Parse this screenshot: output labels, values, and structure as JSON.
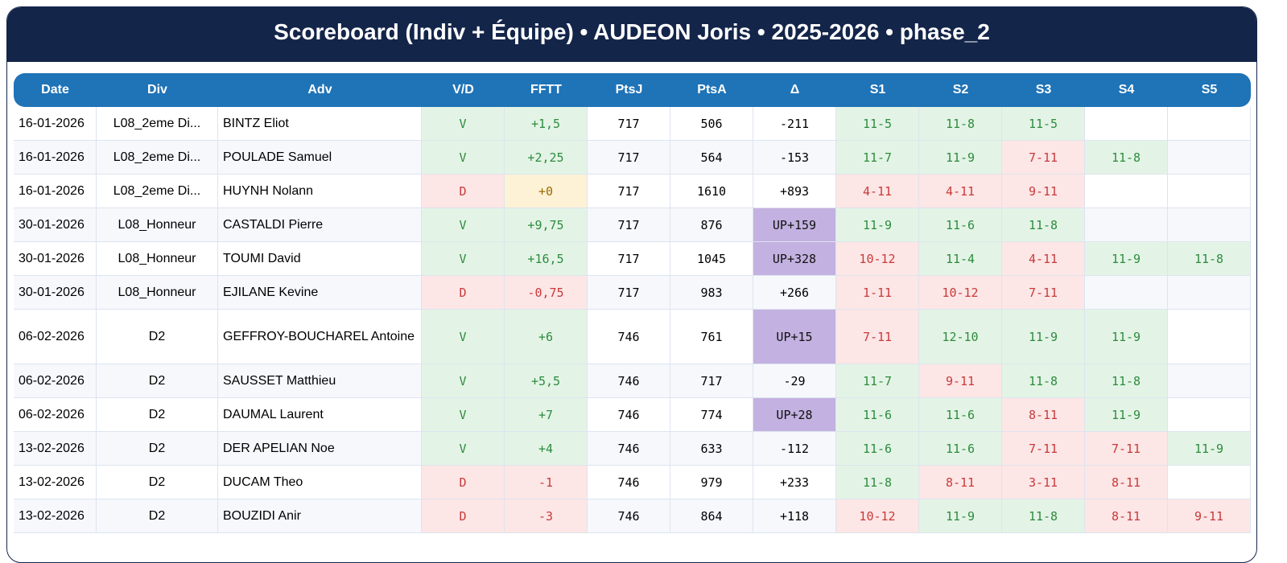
{
  "header": {
    "title": "Scoreboard (Indiv + Équipe) • AUDEON Joris • 2025-2026 • phase_2"
  },
  "table": {
    "columns": [
      "Date",
      "Div",
      "Adv",
      "V/D",
      "FFTT",
      "PtsJ",
      "PtsA",
      "Δ",
      "S1",
      "S2",
      "S3",
      "S4",
      "S5"
    ],
    "rows": [
      [
        "16-01-2026",
        "L08_2eme Di...",
        "BINTZ Eliot",
        "V",
        "+1,5",
        "717",
        "506",
        "-211",
        "11-5",
        "11-8",
        "11-5"
      ],
      [
        "16-01-2026",
        "L08_2eme Di...",
        "POULADE Samuel",
        "V",
        "+2,25",
        "717",
        "564",
        "-153",
        "11-7",
        "11-9",
        "7-11",
        "11-8"
      ],
      [
        "16-01-2026",
        "L08_2eme Di...",
        "HUYNH Nolann",
        "D",
        "+0",
        "717",
        "1610",
        "+893",
        "4-11",
        "4-11",
        "9-11"
      ],
      [
        "30-01-2026",
        "L08_Honneur",
        "CASTALDI Pierre",
        "V",
        "+9,75",
        "717",
        "876",
        "UP+159",
        "11-9",
        "11-6",
        "11-8"
      ],
      [
        "30-01-2026",
        "L08_Honneur",
        "TOUMI David",
        "V",
        "+16,5",
        "717",
        "1045",
        "UP+328",
        "10-12",
        "11-4",
        "4-11",
        "11-9",
        "11-8"
      ],
      [
        "30-01-2026",
        "L08_Honneur",
        "EJILANE Kevine",
        "D",
        "-0,75",
        "717",
        "983",
        "+266",
        "1-11",
        "10-12",
        "7-11"
      ],
      [
        "06-02-2026",
        "D2",
        "GEFFROY-BOUCHAREL Antoine",
        "V",
        "+6",
        "746",
        "761",
        "UP+15",
        "7-11",
        "12-10",
        "11-9",
        "11-9"
      ],
      [
        "06-02-2026",
        "D2",
        "SAUSSET Matthieu",
        "V",
        "+5,5",
        "746",
        "717",
        "-29",
        "11-7",
        "9-11",
        "11-8",
        "11-8"
      ],
      [
        "06-02-2026",
        "D2",
        "DAUMAL Laurent",
        "V",
        "+7",
        "746",
        "774",
        "UP+28",
        "11-6",
        "11-6",
        "8-11",
        "11-9"
      ],
      [
        "13-02-2026",
        "D2",
        "DER APELIAN Noe",
        "V",
        "+4",
        "746",
        "633",
        "-112",
        "11-6",
        "11-6",
        "7-11",
        "7-11",
        "11-9"
      ],
      [
        "13-02-2026",
        "D2",
        "DUCAM Theo",
        "D",
        "-1",
        "746",
        "979",
        "+233",
        "11-8",
        "8-11",
        "3-11",
        "8-11"
      ],
      [
        "13-02-2026",
        "D2",
        "BOUZIDI Anir",
        "D",
        "-3",
        "746",
        "864",
        "+118",
        "10-12",
        "11-9",
        "11-8",
        "8-11",
        "9-11"
      ]
    ]
  }
}
